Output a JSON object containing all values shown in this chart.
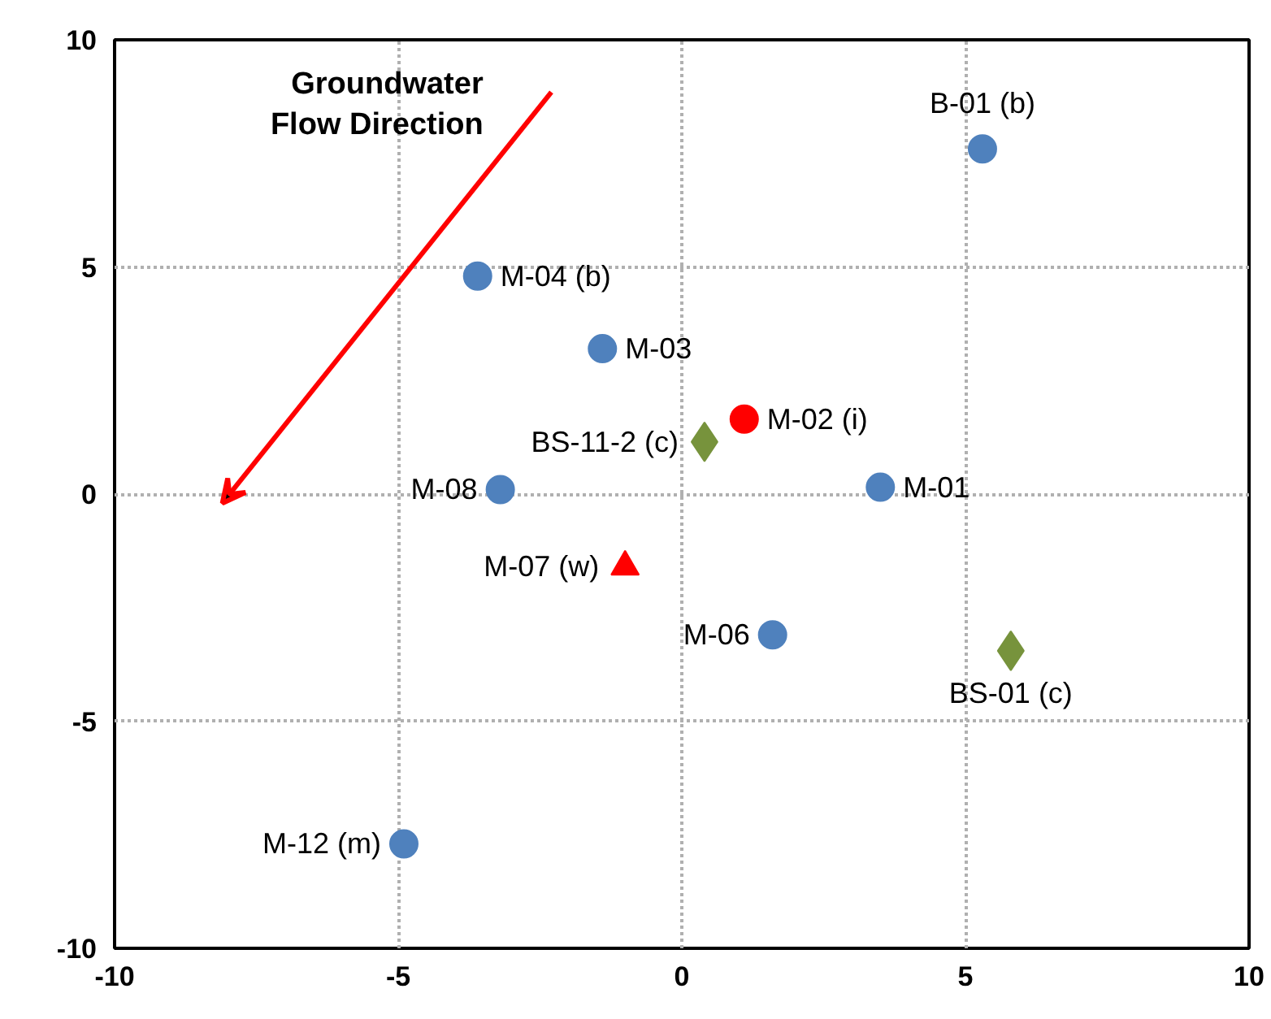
{
  "chart_data": {
    "type": "scatter",
    "xlim": [
      -10,
      10
    ],
    "ylim": [
      -10,
      10
    ],
    "xticks": [
      -10,
      -5,
      0,
      5,
      10
    ],
    "yticks": [
      -10,
      -5,
      0,
      5,
      10
    ],
    "grid": true,
    "annotations": [
      "Groundwater\nFlow Direction"
    ],
    "series": [
      {
        "color": "#4f81bd",
        "marker": "circle",
        "x": [
          5.3,
          -3.6,
          -1.4,
          3.5,
          -3.2,
          1.6,
          -4.9
        ],
        "values": [
          7.6,
          4.8,
          3.2,
          0.15,
          0.1,
          -3.1,
          -7.7
        ],
        "value_labels": [
          "B-01 (b)",
          "M-04 (b)",
          "M-03",
          "M-01",
          "M-08",
          "M-06",
          "M-12 (m)"
        ]
      },
      {
        "color": "#ff0000",
        "marker": "circle",
        "x": [
          1.1
        ],
        "values": [
          1.65
        ],
        "value_labels": [
          "M-02 (i)"
        ]
      },
      {
        "color": "#77933c",
        "marker": "diamond",
        "x": [
          0.4,
          5.8
        ],
        "values": [
          1.15,
          -3.45
        ],
        "value_labels": [
          "BS-11-2 (c)",
          "BS-01 (c)"
        ]
      },
      {
        "color": "#ff0000",
        "marker": "triangle",
        "x": [
          -1.0
        ],
        "values": [
          -1.6
        ],
        "value_labels": [
          "M-07 (w)"
        ]
      }
    ]
  }
}
